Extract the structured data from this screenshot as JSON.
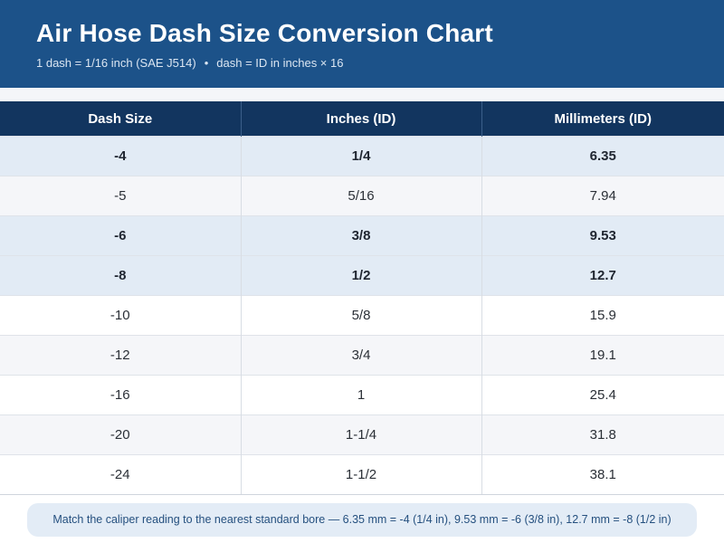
{
  "header": {
    "title": "Air Hose Dash Size Conversion Chart",
    "subtitle_left": "1 dash = 1/16 inch (SAE J514)",
    "subtitle_separator": "•",
    "subtitle_right": "dash = ID in inches × 16",
    "background_color": "#1c5289"
  },
  "table": {
    "columns": [
      "Dash Size",
      "Inches (ID)",
      "Millimeters (ID)"
    ],
    "header_color": "#12355f",
    "highlight_color": "#e2ebf5",
    "rows": [
      {
        "dash": "-4",
        "inches": "1/4",
        "mm": "6.35",
        "highlighted": true
      },
      {
        "dash": "-5",
        "inches": "5/16",
        "mm": "7.94",
        "highlighted": false
      },
      {
        "dash": "-6",
        "inches": "3/8",
        "mm": "9.53",
        "highlighted": true
      },
      {
        "dash": "-8",
        "inches": "1/2",
        "mm": "12.7",
        "highlighted": true
      },
      {
        "dash": "-10",
        "inches": "5/8",
        "mm": "15.9",
        "highlighted": false
      },
      {
        "dash": "-12",
        "inches": "3/4",
        "mm": "19.1",
        "highlighted": false
      },
      {
        "dash": "-16",
        "inches": "1",
        "mm": "25.4",
        "highlighted": false
      },
      {
        "dash": "-20",
        "inches": "1-1/4",
        "mm": "31.8",
        "highlighted": false
      },
      {
        "dash": "-24",
        "inches": "1-1/2",
        "mm": "38.1",
        "highlighted": false
      }
    ]
  },
  "footer": {
    "note": "Match the caliper reading to the nearest standard bore — 6.35 mm = -4 (1/4 in), 9.53 mm = -6 (3/8 in), 12.7 mm = -8 (1/2 in)"
  }
}
